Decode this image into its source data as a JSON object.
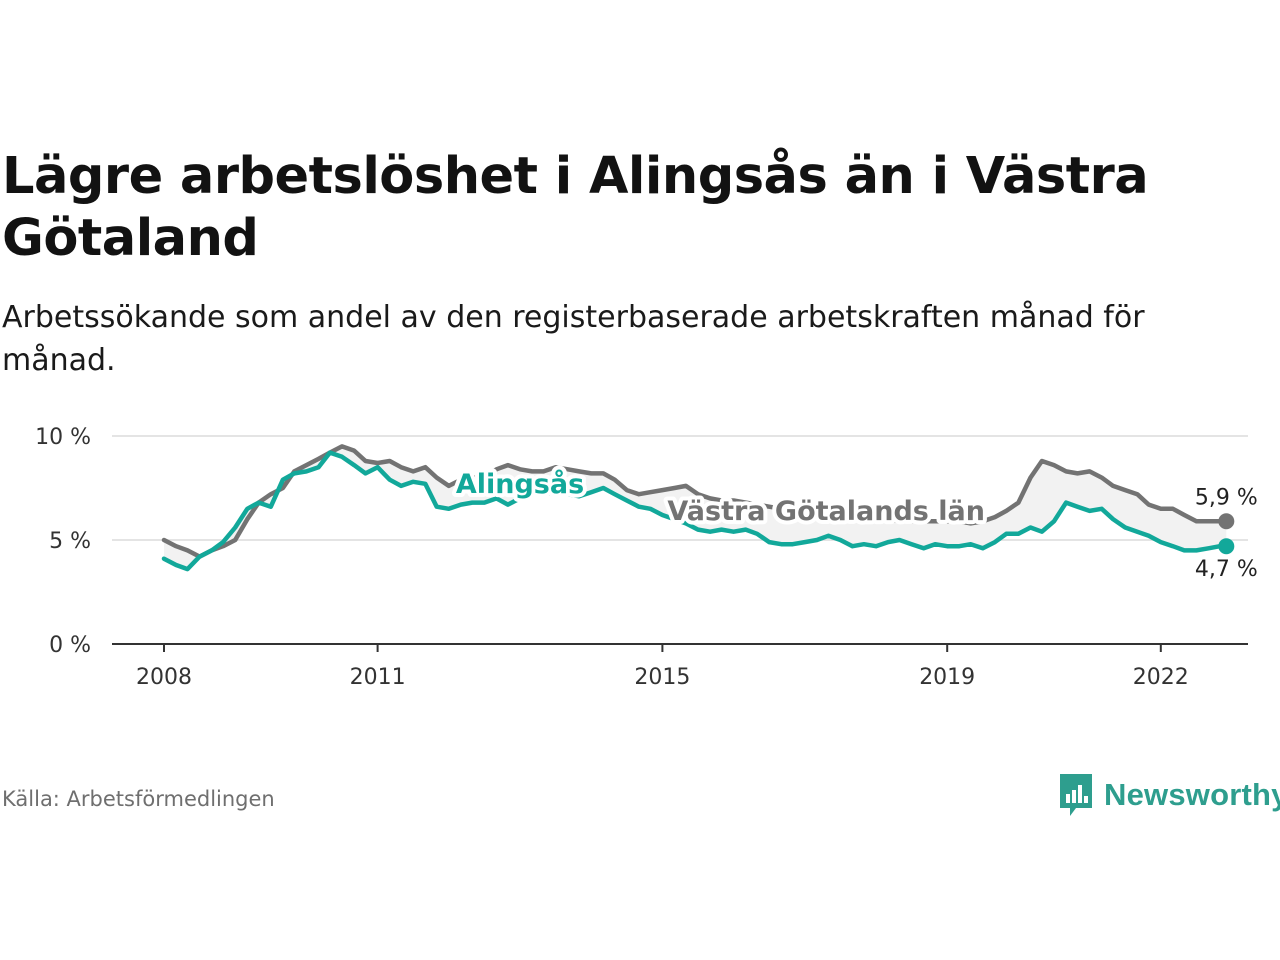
{
  "title": "Lägre arbetslöshet i Alingsås än i Västra Götaland",
  "subtitle": "Arbetssökande som andel av den registerbaserade arbetskraften månad för månad.",
  "source": "Källa: Arbetsförmedlingen",
  "brand": {
    "name": "Newsworthy",
    "icon": "newsworthy-logo-icon",
    "color": "#2e9e8e"
  },
  "chart_data": {
    "type": "line",
    "title": "Lägre arbetslöshet i Alingsås än i Västra Götaland",
    "ylim": [
      0,
      10
    ],
    "yticks": [
      {
        "value": 0,
        "label": "0 %"
      },
      {
        "value": 5,
        "label": "5 %"
      },
      {
        "value": 10,
        "label": "10 %"
      }
    ],
    "xlim": [
      2008,
      2023
    ],
    "xticks": [
      {
        "value": 2008,
        "label": "2008"
      },
      {
        "value": 2011,
        "label": "2011"
      },
      {
        "value": 2015,
        "label": "2015"
      },
      {
        "value": 2019,
        "label": "2019"
      },
      {
        "value": 2022,
        "label": "2022"
      }
    ],
    "grid": true,
    "series": [
      {
        "name": "Västra Götalands län",
        "color": "#737373",
        "end_label": "5,9 %",
        "points": [
          [
            2008,
            5.0
          ],
          [
            2008.17,
            4.7
          ],
          [
            2008.33,
            4.5
          ],
          [
            2008.5,
            4.2
          ],
          [
            2008.67,
            4.5
          ],
          [
            2008.83,
            4.7
          ],
          [
            2009,
            5.0
          ],
          [
            2009.17,
            6.0
          ],
          [
            2009.33,
            6.8
          ],
          [
            2009.5,
            7.2
          ],
          [
            2009.67,
            7.5
          ],
          [
            2009.83,
            8.3
          ],
          [
            2010,
            8.6
          ],
          [
            2010.17,
            8.9
          ],
          [
            2010.33,
            9.2
          ],
          [
            2010.5,
            9.5
          ],
          [
            2010.67,
            9.3
          ],
          [
            2010.83,
            8.8
          ],
          [
            2011,
            8.7
          ],
          [
            2011.17,
            8.8
          ],
          [
            2011.33,
            8.5
          ],
          [
            2011.5,
            8.3
          ],
          [
            2011.67,
            8.5
          ],
          [
            2011.83,
            8.0
          ],
          [
            2012,
            7.6
          ],
          [
            2012.17,
            7.9
          ],
          [
            2012.33,
            8.0
          ],
          [
            2012.5,
            8.0
          ],
          [
            2012.67,
            8.4
          ],
          [
            2012.83,
            8.6
          ],
          [
            2013,
            8.4
          ],
          [
            2013.17,
            8.3
          ],
          [
            2013.33,
            8.3
          ],
          [
            2013.5,
            8.5
          ],
          [
            2013.67,
            8.4
          ],
          [
            2013.83,
            8.3
          ],
          [
            2014,
            8.2
          ],
          [
            2014.17,
            8.2
          ],
          [
            2014.33,
            7.9
          ],
          [
            2014.5,
            7.4
          ],
          [
            2014.67,
            7.2
          ],
          [
            2014.83,
            7.3
          ],
          [
            2015,
            7.4
          ],
          [
            2015.17,
            7.5
          ],
          [
            2015.33,
            7.6
          ],
          [
            2015.5,
            7.2
          ],
          [
            2015.67,
            7.0
          ],
          [
            2015.83,
            6.9
          ],
          [
            2016,
            6.9
          ],
          [
            2016.17,
            6.8
          ],
          [
            2016.33,
            6.7
          ],
          [
            2016.5,
            6.6
          ],
          [
            2016.67,
            6.5
          ],
          [
            2016.83,
            6.4
          ],
          [
            2017,
            6.3
          ],
          [
            2017.17,
            6.3
          ],
          [
            2017.33,
            6.2
          ],
          [
            2017.5,
            6.1
          ],
          [
            2017.67,
            6.1
          ],
          [
            2017.83,
            6.0
          ],
          [
            2018,
            6.0
          ],
          [
            2018.17,
            6.0
          ],
          [
            2018.33,
            5.9
          ],
          [
            2018.5,
            5.9
          ],
          [
            2018.67,
            5.9
          ],
          [
            2018.83,
            5.9
          ],
          [
            2019,
            5.9
          ],
          [
            2019.17,
            5.9
          ],
          [
            2019.33,
            5.8
          ],
          [
            2019.5,
            5.9
          ],
          [
            2019.67,
            6.1
          ],
          [
            2019.83,
            6.4
          ],
          [
            2020,
            6.8
          ],
          [
            2020.17,
            8.0
          ],
          [
            2020.33,
            8.8
          ],
          [
            2020.5,
            8.6
          ],
          [
            2020.67,
            8.3
          ],
          [
            2020.83,
            8.2
          ],
          [
            2021,
            8.3
          ],
          [
            2021.17,
            8.0
          ],
          [
            2021.33,
            7.6
          ],
          [
            2021.5,
            7.4
          ],
          [
            2021.67,
            7.2
          ],
          [
            2021.83,
            6.7
          ],
          [
            2022,
            6.5
          ],
          [
            2022.17,
            6.5
          ],
          [
            2022.33,
            6.2
          ],
          [
            2022.5,
            5.9
          ],
          [
            2022.67,
            5.9
          ],
          [
            2022.83,
            5.9
          ],
          [
            2022.92,
            5.9
          ]
        ]
      },
      {
        "name": "Alingsås",
        "color": "#12a89a",
        "end_label": "4,7 %",
        "points": [
          [
            2008,
            4.1
          ],
          [
            2008.17,
            3.8
          ],
          [
            2008.33,
            3.6
          ],
          [
            2008.5,
            4.2
          ],
          [
            2008.67,
            4.5
          ],
          [
            2008.83,
            4.9
          ],
          [
            2009,
            5.6
          ],
          [
            2009.17,
            6.5
          ],
          [
            2009.33,
            6.8
          ],
          [
            2009.5,
            6.6
          ],
          [
            2009.67,
            7.9
          ],
          [
            2009.83,
            8.2
          ],
          [
            2010,
            8.3
          ],
          [
            2010.17,
            8.5
          ],
          [
            2010.33,
            9.2
          ],
          [
            2010.5,
            9.0
          ],
          [
            2010.67,
            8.6
          ],
          [
            2010.83,
            8.2
          ],
          [
            2011,
            8.5
          ],
          [
            2011.17,
            7.9
          ],
          [
            2011.33,
            7.6
          ],
          [
            2011.5,
            7.8
          ],
          [
            2011.67,
            7.7
          ],
          [
            2011.83,
            6.6
          ],
          [
            2012,
            6.5
          ],
          [
            2012.17,
            6.7
          ],
          [
            2012.33,
            6.8
          ],
          [
            2012.5,
            6.8
          ],
          [
            2012.67,
            7.0
          ],
          [
            2012.83,
            6.7
          ],
          [
            2013,
            7.0
          ],
          [
            2013.17,
            7.3
          ],
          [
            2013.33,
            7.2
          ],
          [
            2013.5,
            7.3
          ],
          [
            2013.67,
            7.2
          ],
          [
            2013.83,
            7.1
          ],
          [
            2014,
            7.3
          ],
          [
            2014.17,
            7.5
          ],
          [
            2014.33,
            7.2
          ],
          [
            2014.5,
            6.9
          ],
          [
            2014.67,
            6.6
          ],
          [
            2014.83,
            6.5
          ],
          [
            2015,
            6.2
          ],
          [
            2015.17,
            6.0
          ],
          [
            2015.33,
            5.8
          ],
          [
            2015.5,
            5.5
          ],
          [
            2015.67,
            5.4
          ],
          [
            2015.83,
            5.5
          ],
          [
            2016,
            5.4
          ],
          [
            2016.17,
            5.5
          ],
          [
            2016.33,
            5.3
          ],
          [
            2016.5,
            4.9
          ],
          [
            2016.67,
            4.8
          ],
          [
            2016.83,
            4.8
          ],
          [
            2017,
            4.9
          ],
          [
            2017.17,
            5.0
          ],
          [
            2017.33,
            5.2
          ],
          [
            2017.5,
            5.0
          ],
          [
            2017.67,
            4.7
          ],
          [
            2017.83,
            4.8
          ],
          [
            2018,
            4.7
          ],
          [
            2018.17,
            4.9
          ],
          [
            2018.33,
            5.0
          ],
          [
            2018.5,
            4.8
          ],
          [
            2018.67,
            4.6
          ],
          [
            2018.83,
            4.8
          ],
          [
            2019,
            4.7
          ],
          [
            2019.17,
            4.7
          ],
          [
            2019.33,
            4.8
          ],
          [
            2019.5,
            4.6
          ],
          [
            2019.67,
            4.9
          ],
          [
            2019.83,
            5.3
          ],
          [
            2020,
            5.3
          ],
          [
            2020.17,
            5.6
          ],
          [
            2020.33,
            5.4
          ],
          [
            2020.5,
            5.9
          ],
          [
            2020.67,
            6.8
          ],
          [
            2020.83,
            6.6
          ],
          [
            2021,
            6.4
          ],
          [
            2021.17,
            6.5
          ],
          [
            2021.33,
            6.0
          ],
          [
            2021.5,
            5.6
          ],
          [
            2021.67,
            5.4
          ],
          [
            2021.83,
            5.2
          ],
          [
            2022,
            4.9
          ],
          [
            2022.17,
            4.7
          ],
          [
            2022.33,
            4.5
          ],
          [
            2022.5,
            4.5
          ],
          [
            2022.67,
            4.6
          ],
          [
            2022.83,
            4.7
          ],
          [
            2022.92,
            4.7
          ]
        ]
      }
    ],
    "annotations": [
      {
        "text": "Alingsås",
        "series": "Alingsås",
        "x": 2013.0,
        "y": 7.7
      },
      {
        "text": "Västra Götalands län",
        "series": "Västra Götalands län",
        "x": 2017.3,
        "y": 6.4
      }
    ]
  }
}
